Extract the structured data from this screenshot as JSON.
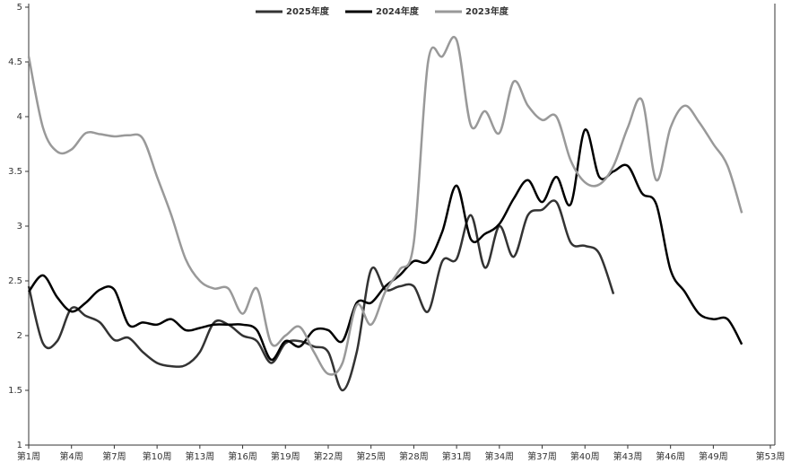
{
  "chart_data": {
    "type": "line",
    "x": [
      1,
      2,
      3,
      4,
      5,
      6,
      7,
      8,
      9,
      10,
      11,
      12,
      13,
      14,
      15,
      16,
      17,
      18,
      19,
      20,
      21,
      22,
      23,
      24,
      25,
      26,
      27,
      28,
      29,
      30,
      31,
      32,
      33,
      34,
      35,
      36,
      37,
      38,
      39,
      40,
      41,
      42,
      43,
      44,
      45,
      46,
      47,
      48,
      49,
      50,
      51
    ],
    "xlim": [
      1,
      53
    ],
    "xticks": [
      {
        "value": 1,
        "label": "第1周"
      },
      {
        "value": 4,
        "label": "第4周"
      },
      {
        "value": 7,
        "label": "第7周"
      },
      {
        "value": 10,
        "label": "第10周"
      },
      {
        "value": 13,
        "label": "第13周"
      },
      {
        "value": 16,
        "label": "第16周"
      },
      {
        "value": 19,
        "label": "第19周"
      },
      {
        "value": 22,
        "label": "第22周"
      },
      {
        "value": 25,
        "label": "第25周"
      },
      {
        "value": 28,
        "label": "第28周"
      },
      {
        "value": 31,
        "label": "第31周"
      },
      {
        "value": 34,
        "label": "第34周"
      },
      {
        "value": 37,
        "label": "第37周"
      },
      {
        "value": 40,
        "label": "第40周"
      },
      {
        "value": 43,
        "label": "第43周"
      },
      {
        "value": 46,
        "label": "第46周"
      },
      {
        "value": 49,
        "label": "第49周"
      },
      {
        "value": 53,
        "label": "第53周"
      }
    ],
    "ylim": [
      1,
      5
    ],
    "yticks": [
      1,
      1.5,
      2,
      2.5,
      3,
      3.5,
      4,
      4.5,
      5
    ],
    "series": [
      {
        "name": "2025年度",
        "color": "#333333",
        "values": [
          2.45,
          1.93,
          1.95,
          2.25,
          2.18,
          2.12,
          1.96,
          1.98,
          1.85,
          1.75,
          1.72,
          1.73,
          1.85,
          2.12,
          2.1,
          2.0,
          1.95,
          1.75,
          1.93,
          1.95,
          1.9,
          1.85,
          1.5,
          1.85,
          2.6,
          2.42,
          2.45,
          2.45,
          2.22,
          2.68,
          2.7,
          3.1,
          2.62,
          3.0,
          2.72,
          3.1,
          3.15,
          3.22,
          2.85,
          2.82,
          2.75,
          2.38,
          null,
          null,
          null,
          null,
          null,
          null,
          null,
          null,
          null
        ]
      },
      {
        "name": "2024年度",
        "color": "#000000",
        "values": [
          2.4,
          2.55,
          2.35,
          2.22,
          2.3,
          2.42,
          2.42,
          2.1,
          2.12,
          2.1,
          2.15,
          2.05,
          2.07,
          2.1,
          2.1,
          2.1,
          2.05,
          1.78,
          1.95,
          1.9,
          2.05,
          2.05,
          1.95,
          2.3,
          2.3,
          2.45,
          2.55,
          2.68,
          2.68,
          2.95,
          3.37,
          2.88,
          2.93,
          3.02,
          3.25,
          3.42,
          3.22,
          3.45,
          3.2,
          3.88,
          3.45,
          3.5,
          3.55,
          3.3,
          3.2,
          2.6,
          2.4,
          2.2,
          2.15,
          2.15,
          1.92
        ]
      },
      {
        "name": "2023年度",
        "color": "#999999",
        "values": [
          4.55,
          3.9,
          3.68,
          3.7,
          3.85,
          3.84,
          3.82,
          3.83,
          3.8,
          3.45,
          3.1,
          2.7,
          2.5,
          2.43,
          2.43,
          2.2,
          2.43,
          1.93,
          2.0,
          2.08,
          1.85,
          1.65,
          1.75,
          2.28,
          2.1,
          2.4,
          2.6,
          2.85,
          4.5,
          4.55,
          4.7,
          3.92,
          4.05,
          3.85,
          4.32,
          4.1,
          3.97,
          4.0,
          3.6,
          3.4,
          3.38,
          3.55,
          3.9,
          4.15,
          3.42,
          3.9,
          4.1,
          3.95,
          3.75,
          3.55,
          3.12
        ]
      }
    ]
  }
}
